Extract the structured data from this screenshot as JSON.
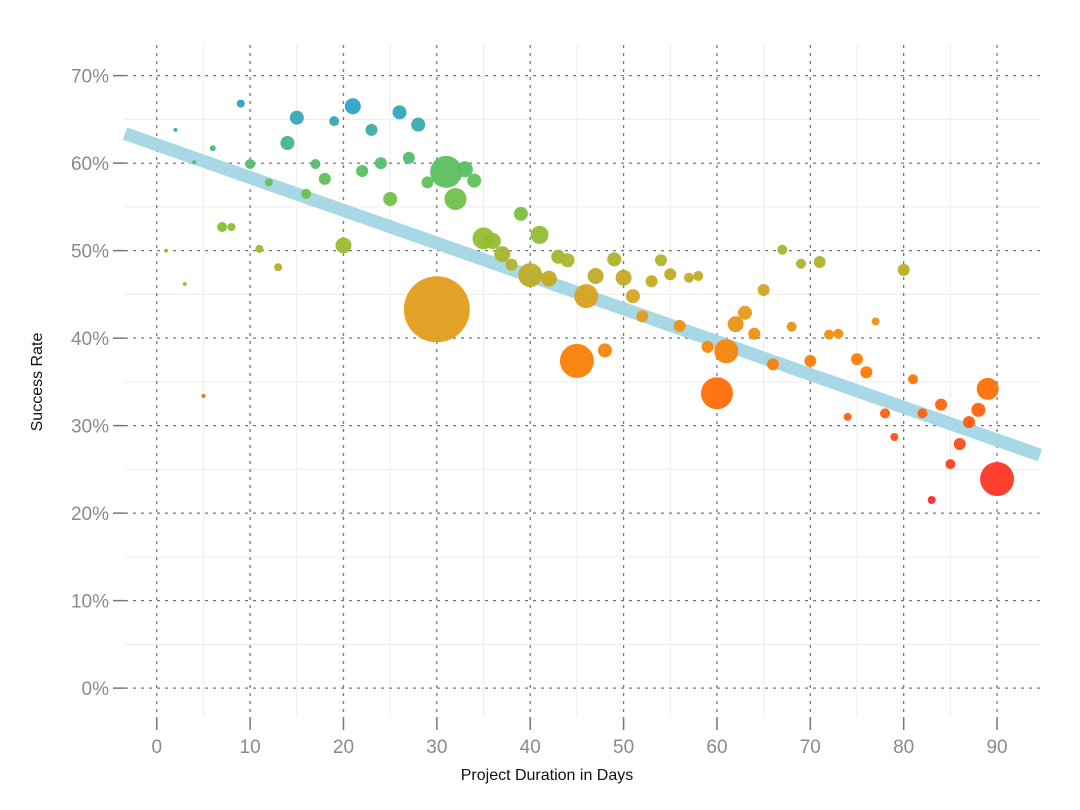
{
  "chart_data": {
    "type": "scatter",
    "title": "",
    "xlabel": "Project Duration in Days",
    "ylabel": "Success Rate",
    "xlim": [
      -3.4,
      94.6
    ],
    "ylim": [
      -3.3,
      73.5
    ],
    "xticks": [
      0,
      10,
      20,
      30,
      40,
      50,
      60,
      70,
      80,
      90
    ],
    "xtick_labels": [
      "0",
      "10",
      "20",
      "30",
      "40",
      "50",
      "60",
      "70",
      "80",
      "90"
    ],
    "yticks": [
      0,
      10,
      20,
      30,
      40,
      50,
      60,
      70
    ],
    "ytick_labels": [
      "0%",
      "10%",
      "20%",
      "30%",
      "40%",
      "50%",
      "60%",
      "70%"
    ],
    "grid": true,
    "color_scale": {
      "low": "#ff2a2a",
      "mid_low": "#ff7a00",
      "mid": "#e0a020",
      "mid_high": "#8cc030",
      "high_green": "#5cc060",
      "high": "#2aa0d0"
    },
    "trend_line": {
      "intercept": 62.1,
      "slope": -0.375,
      "color": "#a8d8e6"
    },
    "points": [
      {
        "x": 2,
        "y": 63.8,
        "size": 4
      },
      {
        "x": 1,
        "y": 50,
        "size": 4
      },
      {
        "x": 3,
        "y": 46.2,
        "size": 4
      },
      {
        "x": 4,
        "y": 60.1,
        "size": 4
      },
      {
        "x": 5,
        "y": 33.4,
        "size": 4
      },
      {
        "x": 6,
        "y": 61.7,
        "size": 9
      },
      {
        "x": 7,
        "y": 52.7,
        "size": 25
      },
      {
        "x": 8,
        "y": 52.7,
        "size": 16
      },
      {
        "x": 9,
        "y": 66.8,
        "size": 16
      },
      {
        "x": 10,
        "y": 59.9,
        "size": 25
      },
      {
        "x": 11,
        "y": 50.2,
        "size": 16
      },
      {
        "x": 12,
        "y": 57.8,
        "size": 16
      },
      {
        "x": 13,
        "y": 48.1,
        "size": 16
      },
      {
        "x": 14,
        "y": 62.3,
        "size": 49
      },
      {
        "x": 15,
        "y": 65.2,
        "size": 49
      },
      {
        "x": 16,
        "y": 56.5,
        "size": 25
      },
      {
        "x": 17,
        "y": 59.9,
        "size": 25
      },
      {
        "x": 18,
        "y": 58.2,
        "size": 36
      },
      {
        "x": 19,
        "y": 64.8,
        "size": 25
      },
      {
        "x": 20,
        "y": 50.6,
        "size": 64
      },
      {
        "x": 21,
        "y": 66.5,
        "size": 64
      },
      {
        "x": 22,
        "y": 59.1,
        "size": 36
      },
      {
        "x": 23,
        "y": 63.8,
        "size": 36
      },
      {
        "x": 24,
        "y": 60.0,
        "size": 36
      },
      {
        "x": 25,
        "y": 55.9,
        "size": 49
      },
      {
        "x": 26,
        "y": 65.8,
        "size": 49
      },
      {
        "x": 27,
        "y": 60.6,
        "size": 36
      },
      {
        "x": 28,
        "y": 64.4,
        "size": 49
      },
      {
        "x": 29,
        "y": 57.8,
        "size": 36
      },
      {
        "x": 30,
        "y": 43.3,
        "size": 1089
      },
      {
        "x": 31,
        "y": 59.0,
        "size": 256
      },
      {
        "x": 32,
        "y": 55.9,
        "size": 121
      },
      {
        "x": 33,
        "y": 59.3,
        "size": 64
      },
      {
        "x": 34,
        "y": 58.0,
        "size": 49
      },
      {
        "x": 35,
        "y": 51.4,
        "size": 121
      },
      {
        "x": 36,
        "y": 51.1,
        "size": 64
      },
      {
        "x": 37,
        "y": 49.6,
        "size": 64
      },
      {
        "x": 38,
        "y": 48.4,
        "size": 36
      },
      {
        "x": 39,
        "y": 54.2,
        "size": 49
      },
      {
        "x": 40,
        "y": 47.2,
        "size": 144
      },
      {
        "x": 41,
        "y": 51.8,
        "size": 81
      },
      {
        "x": 42,
        "y": 46.8,
        "size": 64
      },
      {
        "x": 43,
        "y": 49.3,
        "size": 49
      },
      {
        "x": 44,
        "y": 48.9,
        "size": 49
      },
      {
        "x": 45,
        "y": 37.4,
        "size": 289
      },
      {
        "x": 46,
        "y": 44.8,
        "size": 144
      },
      {
        "x": 47,
        "y": 47.1,
        "size": 64
      },
      {
        "x": 48,
        "y": 38.6,
        "size": 49
      },
      {
        "x": 49,
        "y": 49.0,
        "size": 49
      },
      {
        "x": 50,
        "y": 46.9,
        "size": 64
      },
      {
        "x": 51,
        "y": 44.8,
        "size": 49
      },
      {
        "x": 52,
        "y": 42.5,
        "size": 36
      },
      {
        "x": 53,
        "y": 46.5,
        "size": 36
      },
      {
        "x": 54,
        "y": 48.9,
        "size": 36
      },
      {
        "x": 55,
        "y": 47.3,
        "size": 36
      },
      {
        "x": 56,
        "y": 41.4,
        "size": 36
      },
      {
        "x": 57,
        "y": 46.9,
        "size": 25
      },
      {
        "x": 58,
        "y": 47.1,
        "size": 25
      },
      {
        "x": 59,
        "y": 39.0,
        "size": 36
      },
      {
        "x": 60,
        "y": 33.7,
        "size": 256
      },
      {
        "x": 61,
        "y": 38.5,
        "size": 144
      },
      {
        "x": 62,
        "y": 41.6,
        "size": 64
      },
      {
        "x": 63,
        "y": 42.9,
        "size": 49
      },
      {
        "x": 64,
        "y": 40.5,
        "size": 36
      },
      {
        "x": 65,
        "y": 45.5,
        "size": 36
      },
      {
        "x": 66,
        "y": 37.0,
        "size": 36
      },
      {
        "x": 67,
        "y": 50.1,
        "size": 25
      },
      {
        "x": 68,
        "y": 41.3,
        "size": 25
      },
      {
        "x": 69,
        "y": 48.5,
        "size": 25
      },
      {
        "x": 70,
        "y": 37.4,
        "size": 36
      },
      {
        "x": 71,
        "y": 48.7,
        "size": 36
      },
      {
        "x": 72,
        "y": 40.4,
        "size": 25
      },
      {
        "x": 73,
        "y": 40.5,
        "size": 25
      },
      {
        "x": 74,
        "y": 31.0,
        "size": 16
      },
      {
        "x": 75,
        "y": 37.6,
        "size": 36
      },
      {
        "x": 76,
        "y": 36.1,
        "size": 36
      },
      {
        "x": 77,
        "y": 41.9,
        "size": 16
      },
      {
        "x": 78,
        "y": 31.4,
        "size": 25
      },
      {
        "x": 79,
        "y": 28.7,
        "size": 16
      },
      {
        "x": 80,
        "y": 47.8,
        "size": 36
      },
      {
        "x": 81,
        "y": 35.3,
        "size": 25
      },
      {
        "x": 82,
        "y": 31.4,
        "size": 25
      },
      {
        "x": 83,
        "y": 21.5,
        "size": 16
      },
      {
        "x": 84,
        "y": 32.4,
        "size": 36
      },
      {
        "x": 85,
        "y": 25.6,
        "size": 25
      },
      {
        "x": 86,
        "y": 27.9,
        "size": 36
      },
      {
        "x": 87,
        "y": 30.4,
        "size": 36
      },
      {
        "x": 88,
        "y": 31.8,
        "size": 49
      },
      {
        "x": 89,
        "y": 34.2,
        "size": 121
      },
      {
        "x": 90,
        "y": 23.9,
        "size": 289
      }
    ]
  }
}
